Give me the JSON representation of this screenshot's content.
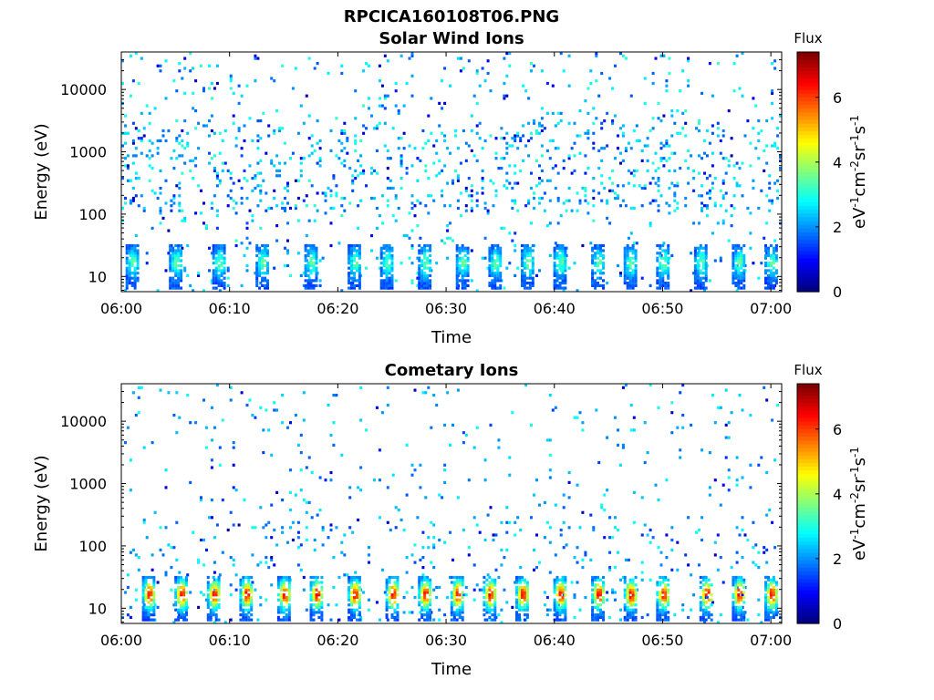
{
  "figure_title": "RPCICA160108T06.PNG",
  "colorbar_title": "Flux",
  "colorbar_unit": "eV-1cm-2sr-1s-1",
  "colors": {
    "jet_min": "#00008f",
    "jet_max": "#800000",
    "axis": "#000000",
    "background": "#ffffff"
  },
  "chart_data": [
    {
      "type": "heatmap",
      "title": "Solar Wind Ions",
      "xlabel": "Time",
      "ylabel": "Energy (eV)",
      "x_ticks": [
        "06:00",
        "06:10",
        "06:20",
        "06:30",
        "06:40",
        "06:50",
        "07:00"
      ],
      "y_ticks": [
        "10",
        "100",
        "1000",
        "10000"
      ],
      "xlim": [
        "06:00",
        "07:01"
      ],
      "ylim": [
        5.7,
        40000
      ],
      "yscale": "log",
      "color_range": [
        0,
        7.4
      ],
      "colorbar_ticks": [
        "0",
        "2",
        "4",
        "6"
      ],
      "strong_band_times_min": [
        1,
        5,
        9,
        13,
        17.5,
        21.5,
        24.5,
        28,
        31.5,
        34.5,
        37.5,
        40.5,
        44,
        47,
        50,
        53.5,
        57,
        60
      ],
      "band_energy_range_eV": [
        6,
        30
      ],
      "band_peak_flux": 3.5,
      "background_flux_range": [
        1.5,
        3.2
      ]
    },
    {
      "type": "heatmap",
      "title": "Cometary Ions",
      "xlabel": "Time",
      "ylabel": "Energy (eV)",
      "x_ticks": [
        "06:00",
        "06:10",
        "06:20",
        "06:30",
        "06:40",
        "06:50",
        "07:00"
      ],
      "y_ticks": [
        "10",
        "100",
        "1000",
        "10000"
      ],
      "xlim": [
        "06:00",
        "07:01"
      ],
      "ylim": [
        5.7,
        40000
      ],
      "yscale": "log",
      "color_range": [
        0,
        7.4
      ],
      "colorbar_ticks": [
        "0",
        "2",
        "4",
        "6"
      ],
      "strong_band_times_min": [
        2.5,
        5.5,
        8.5,
        11.5,
        15,
        18,
        21.5,
        25,
        28,
        31,
        34,
        37,
        40.5,
        44,
        47,
        50,
        54,
        57,
        60
      ],
      "band_energy_range_eV": [
        6,
        30
      ],
      "band_peak_flux": 6.5,
      "background_flux_range": [
        1.5,
        3.0
      ]
    }
  ]
}
